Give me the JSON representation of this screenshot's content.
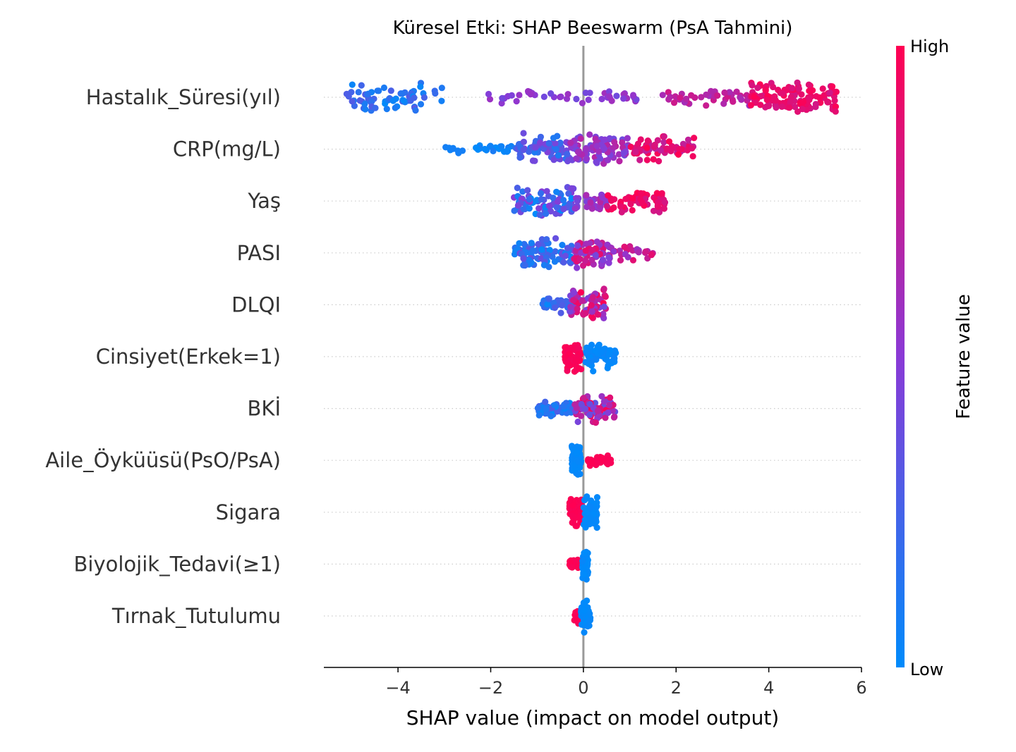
{
  "chart_data": {
    "type": "scatter",
    "subtype": "shap-beeswarm",
    "title": "Küresel Etki: SHAP Beeswarm (PsA Tahmini)",
    "xlabel": "SHAP value (impact on model output)",
    "ylabel": "",
    "xlim": [
      -5.6,
      6.0
    ],
    "xticks": [
      -4,
      -2,
      0,
      2,
      4,
      6
    ],
    "xtick_labels": [
      "−4",
      "−2",
      "0",
      "2",
      "4",
      "6"
    ],
    "grid": "dotted horizontal row lines",
    "zero_line": 0,
    "colorbar": {
      "title": "Feature value",
      "high_label": "High",
      "low_label": "Low",
      "low_color": "#008bfb",
      "mid_color": "#8a3ad6",
      "high_color": "#ff0052"
    },
    "features": [
      {
        "name": "Hastalık_Süresi(yıl)",
        "clusters": [
          {
            "xmin": -5.2,
            "xmax": -3.0,
            "vmin": 0.0,
            "vmax": 0.3,
            "n": 70,
            "spread": 1.0
          },
          {
            "xmin": -2.1,
            "xmax": 1.2,
            "vmin": 0.4,
            "vmax": 0.6,
            "n": 45,
            "spread": 0.45
          },
          {
            "xmin": 1.7,
            "xmax": 3.6,
            "vmin": 0.6,
            "vmax": 0.8,
            "n": 45,
            "spread": 0.55
          },
          {
            "xmin": 3.6,
            "xmax": 5.5,
            "vmin": 0.8,
            "vmax": 1.0,
            "n": 120,
            "spread": 1.0
          }
        ]
      },
      {
        "name": "CRP(mg/L)",
        "clusters": [
          {
            "xmin": -3.1,
            "xmax": -1.5,
            "vmin": 0.0,
            "vmax": 0.1,
            "n": 28,
            "spread": 0.25
          },
          {
            "xmin": -1.5,
            "xmax": -0.3,
            "vmin": 0.1,
            "vmax": 0.5,
            "n": 70,
            "spread": 1.0
          },
          {
            "xmin": -0.3,
            "xmax": 1.0,
            "vmin": 0.4,
            "vmax": 0.7,
            "n": 85,
            "spread": 1.0
          },
          {
            "xmin": 1.0,
            "xmax": 2.4,
            "vmin": 0.7,
            "vmax": 1.0,
            "n": 60,
            "spread": 0.8
          }
        ]
      },
      {
        "name": "Yaş",
        "clusters": [
          {
            "xmin": -1.5,
            "xmax": -0.2,
            "vmin": 0.0,
            "vmax": 0.5,
            "n": 85,
            "spread": 1.0
          },
          {
            "xmin": -0.2,
            "xmax": 0.5,
            "vmin": 0.4,
            "vmax": 0.7,
            "n": 35,
            "spread": 0.6
          },
          {
            "xmin": 0.5,
            "xmax": 1.8,
            "vmin": 0.8,
            "vmax": 1.0,
            "n": 60,
            "spread": 0.75
          }
        ]
      },
      {
        "name": "PASI",
        "clusters": [
          {
            "xmin": -1.5,
            "xmax": -0.2,
            "vmin": 0.0,
            "vmax": 0.4,
            "n": 85,
            "spread": 1.0
          },
          {
            "xmin": -0.2,
            "xmax": 0.6,
            "vmin": 0.4,
            "vmax": 0.9,
            "n": 70,
            "spread": 1.0
          },
          {
            "xmin": 0.6,
            "xmax": 1.5,
            "vmin": 0.5,
            "vmax": 0.9,
            "n": 25,
            "spread": 0.5
          }
        ]
      },
      {
        "name": "DLQI",
        "clusters": [
          {
            "xmin": -0.9,
            "xmax": -0.1,
            "vmin": 0.0,
            "vmax": 0.3,
            "n": 45,
            "spread": 0.6
          },
          {
            "xmin": -0.3,
            "xmax": 0.5,
            "vmin": 0.4,
            "vmax": 1.0,
            "n": 70,
            "spread": 1.0
          }
        ]
      },
      {
        "name": "Cinsiyet(Erkek=1)",
        "clusters": [
          {
            "xmin": -0.4,
            "xmax": -0.05,
            "vmin": 0.95,
            "vmax": 1.0,
            "n": 60,
            "spread": 1.0
          },
          {
            "xmin": 0.05,
            "xmax": 0.7,
            "vmin": 0.0,
            "vmax": 0.05,
            "n": 60,
            "spread": 1.0
          }
        ]
      },
      {
        "name": "BKİ",
        "clusters": [
          {
            "xmin": -1.0,
            "xmax": -0.2,
            "vmin": 0.0,
            "vmax": 0.3,
            "n": 55,
            "spread": 0.5
          },
          {
            "xmin": -0.2,
            "xmax": 0.7,
            "vmin": 0.3,
            "vmax": 1.0,
            "n": 70,
            "spread": 1.0
          }
        ]
      },
      {
        "name": "Aile_Öyküüsü(PsO/PsA)",
        "clusters": [
          {
            "xmin": -0.25,
            "xmax": -0.05,
            "vmin": 0.0,
            "vmax": 0.03,
            "n": 90,
            "spread": 1.0
          },
          {
            "xmin": 0.1,
            "xmax": 0.6,
            "vmin": 0.97,
            "vmax": 1.0,
            "n": 40,
            "spread": 0.35
          }
        ]
      },
      {
        "name": "Sigara",
        "clusters": [
          {
            "xmin": -0.3,
            "xmax": -0.02,
            "vmin": 0.97,
            "vmax": 1.0,
            "n": 55,
            "spread": 1.0
          },
          {
            "xmin": 0.0,
            "xmax": 0.3,
            "vmin": 0.0,
            "vmax": 0.03,
            "n": 55,
            "spread": 1.0
          }
        ]
      },
      {
        "name": "Biyolojik_Tedavi(≥1)",
        "clusters": [
          {
            "xmin": -0.3,
            "xmax": 0.0,
            "vmin": 0.97,
            "vmax": 1.0,
            "n": 22,
            "spread": 0.3
          },
          {
            "xmin": -0.02,
            "xmax": 0.1,
            "vmin": 0.0,
            "vmax": 0.03,
            "n": 70,
            "spread": 1.0
          }
        ]
      },
      {
        "name": "Tırnak_Tutulumu",
        "clusters": [
          {
            "xmin": -0.2,
            "xmax": 0.0,
            "vmin": 0.97,
            "vmax": 1.0,
            "n": 30,
            "spread": 0.6
          },
          {
            "xmin": -0.05,
            "xmax": 0.15,
            "vmin": 0.0,
            "vmax": 0.03,
            "n": 60,
            "spread": 1.0
          }
        ]
      }
    ]
  }
}
